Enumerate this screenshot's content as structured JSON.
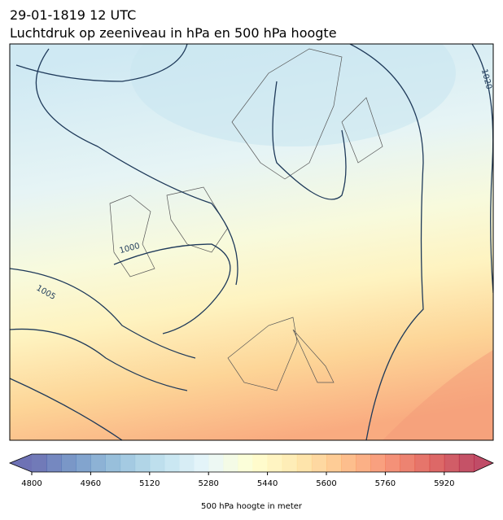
{
  "header": {
    "date": "29-01-1819 12 UTC",
    "title": "Luchtdruk op zeeniveau in hPa en 500 hPa hoogte"
  },
  "map": {
    "contour_labels": [
      "1000",
      "1005",
      "1020"
    ]
  },
  "colorbar": {
    "label": "500 hPa hoogte in meter",
    "lim": [
      4800,
      6000
    ],
    "step": 40,
    "ticks": [
      4800,
      4960,
      5120,
      5280,
      5440,
      5600,
      5760,
      5920
    ],
    "colormap": [
      "#313695",
      "#4575b4",
      "#74add1",
      "#abd9e9",
      "#e0f3f8",
      "#ffffbf",
      "#fee090",
      "#fdae61",
      "#f46d43",
      "#d73027",
      "#a50026"
    ],
    "alpha": 0.7
  }
}
